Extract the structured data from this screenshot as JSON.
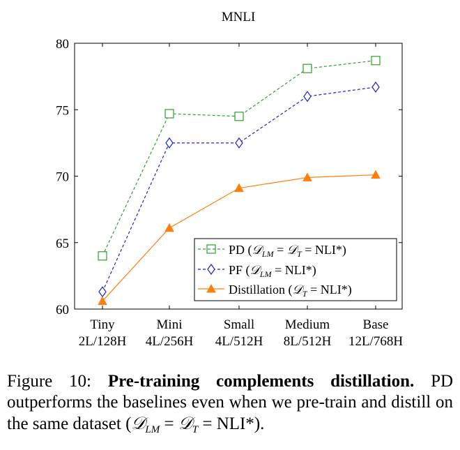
{
  "chart_data": {
    "type": "line",
    "title": "MNLI",
    "categories": [
      "Tiny",
      "Mini",
      "Small",
      "Medium",
      "Base"
    ],
    "category_sublabels": [
      "2L/128H",
      "4L/256H",
      "4L/512H",
      "8L/512H",
      "12L/768H"
    ],
    "ylim": [
      60,
      80
    ],
    "yticks": [
      "60",
      "65",
      "70",
      "75",
      "80"
    ],
    "grid": false,
    "legend_position": "bottom-right",
    "series": [
      {
        "name": "PD (𝒟LM = 𝒟T = NLI*)",
        "marker": "square",
        "dash": "dashed",
        "color": "#2ca02c",
        "values": [
          64.0,
          74.7,
          74.5,
          78.1,
          78.7
        ]
      },
      {
        "name": "PF (𝒟LM = NLI*)",
        "marker": "diamond",
        "dash": "dashed",
        "color": "#1f1fcc",
        "values": [
          61.3,
          72.5,
          72.5,
          76.0,
          76.7
        ]
      },
      {
        "name": "Distillation (𝒟T = NLI*)",
        "marker": "triangle",
        "dash": "solid",
        "color": "#ff7f0e",
        "values": [
          60.6,
          66.1,
          69.1,
          69.9,
          70.1
        ]
      }
    ]
  },
  "legend": {
    "pd": {
      "prefix": "PD (",
      "d1": "𝒟",
      "s1": "LM",
      "mid": " = ",
      "d2": "𝒟",
      "s2": "T",
      "end": " = NLI*)"
    },
    "pf": {
      "prefix": "PF (",
      "d1": "𝒟",
      "s1": "LM",
      "end": " = NLI*)"
    },
    "distill": {
      "prefix": "Distillation (",
      "d1": "𝒟",
      "s1": "T",
      "end": " = NLI*)"
    }
  },
  "caption": {
    "label": "Figure 10:",
    "bold": "Pre-training complements distillation.",
    "text1": "PD outperforms the baselines even when we pre-train and distill on the same dataset (",
    "d1": "𝒟",
    "s1": "LM",
    "mid": " = ",
    "d2": "𝒟",
    "s2": "T",
    "end": " = NLI*)."
  }
}
